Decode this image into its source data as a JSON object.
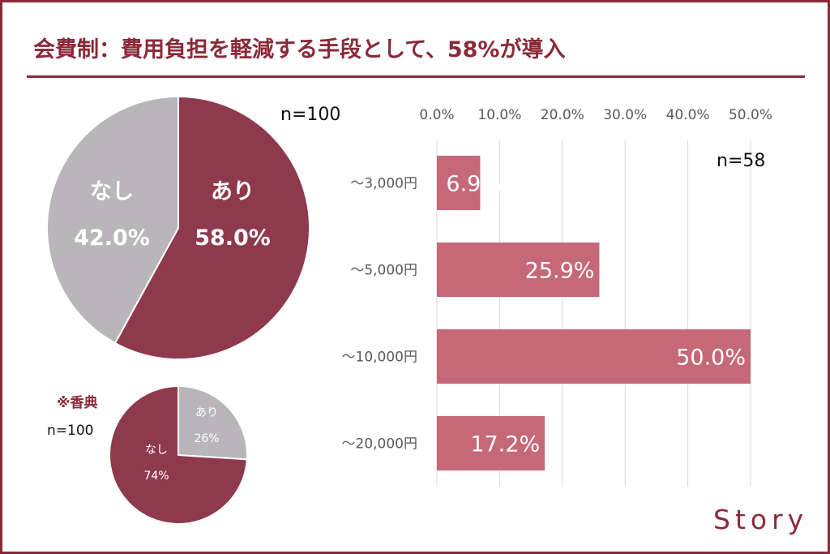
{
  "title": "会費制：費用負担を軽減する手段として、58%が導入",
  "logo": "Story",
  "colors": {
    "brand": "#8a2a38",
    "pie_main": "#8e3a4c",
    "pie_grey": "#b9b6ba",
    "bar": "#c56878",
    "grid": "#d9d9d9"
  },
  "chart_data": [
    {
      "type": "pie",
      "n_label": "n=100",
      "slices": [
        {
          "label": "あり",
          "value": 58.0,
          "value_label": "58.0%"
        },
        {
          "label": "なし",
          "value": 42.0,
          "value_label": "42.0%"
        }
      ]
    },
    {
      "type": "bar",
      "orientation": "horizontal",
      "n_label": "n=58",
      "categories": [
        "～3,000円",
        "～5,000円",
        "～10,000円",
        "～20,000円"
      ],
      "values": [
        6.9,
        25.9,
        50.0,
        17.2
      ],
      "value_labels": [
        "6.9%",
        "25.9%",
        "50.0%",
        "17.2%"
      ],
      "xlim": [
        0,
        50
      ],
      "ticks": [
        "0.0%",
        "10.0%",
        "20.0%",
        "30.0%",
        "40.0%",
        "50.0%"
      ],
      "grid": true
    },
    {
      "type": "pie",
      "note": "※香典",
      "n_label": "n=100",
      "slices": [
        {
          "label": "あり",
          "value": 26,
          "value_label": "26%"
        },
        {
          "label": "なし",
          "value": 74,
          "value_label": "74%"
        }
      ]
    }
  ]
}
